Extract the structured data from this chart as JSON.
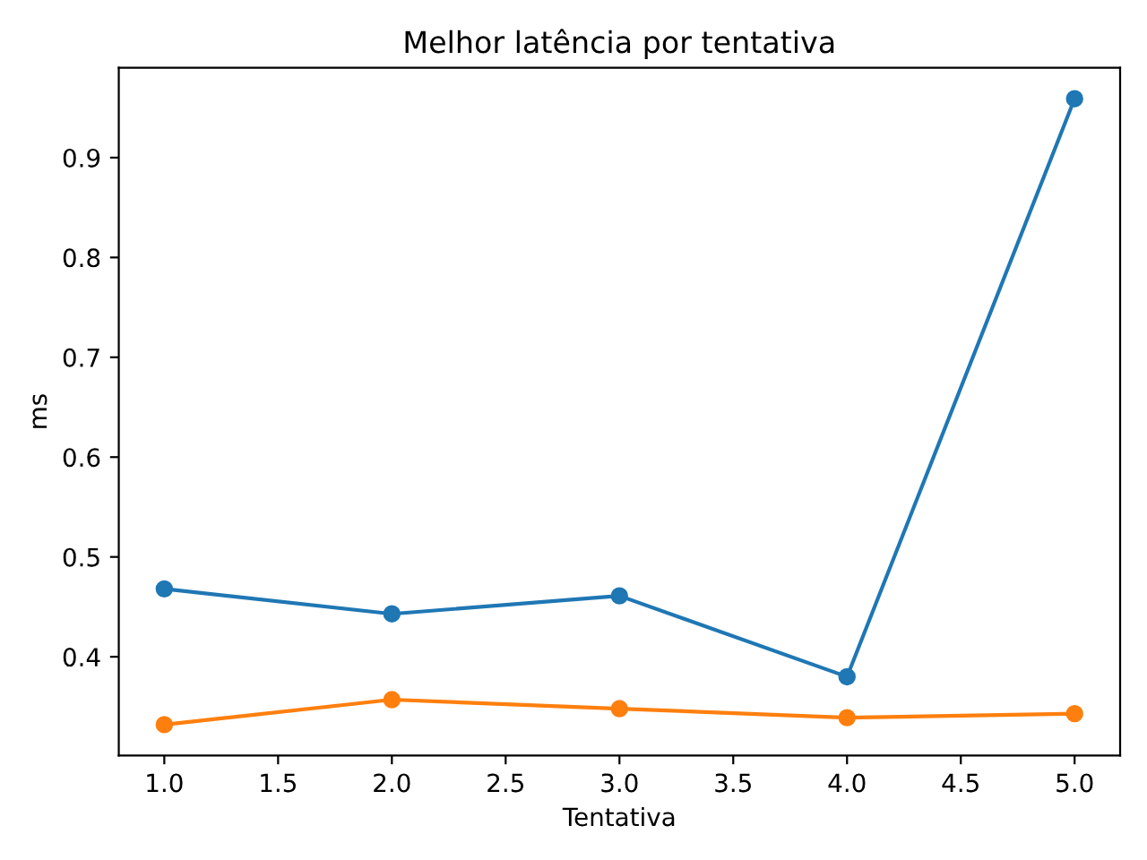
{
  "chart_data": {
    "type": "line",
    "title": "Melhor latência por tentativa",
    "xlabel": "Tentativa",
    "ylabel": "ms",
    "x": [
      1,
      2,
      3,
      4,
      5
    ],
    "series": [
      {
        "color": "#1f77b4",
        "values": [
          0.468,
          0.443,
          0.461,
          0.38,
          0.959
        ]
      },
      {
        "color": "#ff7f0e",
        "values": [
          0.332,
          0.357,
          0.348,
          0.339,
          0.343
        ]
      }
    ],
    "xlim": [
      0.8,
      5.2
    ],
    "xticks": [
      {
        "value": 1,
        "label": "1.0"
      },
      {
        "value": 1.5,
        "label": "1.5"
      },
      {
        "value": 2,
        "label": "2.0"
      },
      {
        "value": 2.5,
        "label": "2.5"
      },
      {
        "value": 3,
        "label": "3.0"
      },
      {
        "value": 3.5,
        "label": "3.5"
      },
      {
        "value": 4,
        "label": "4.0"
      },
      {
        "value": 4.5,
        "label": "4.5"
      },
      {
        "value": 5,
        "label": "5.0"
      }
    ],
    "ylim": [
      0.301,
      0.99
    ],
    "yticks": [
      0.4,
      0.5,
      0.6,
      0.7,
      0.8,
      0.9
    ],
    "marker": "circle",
    "line_style": "solid"
  }
}
